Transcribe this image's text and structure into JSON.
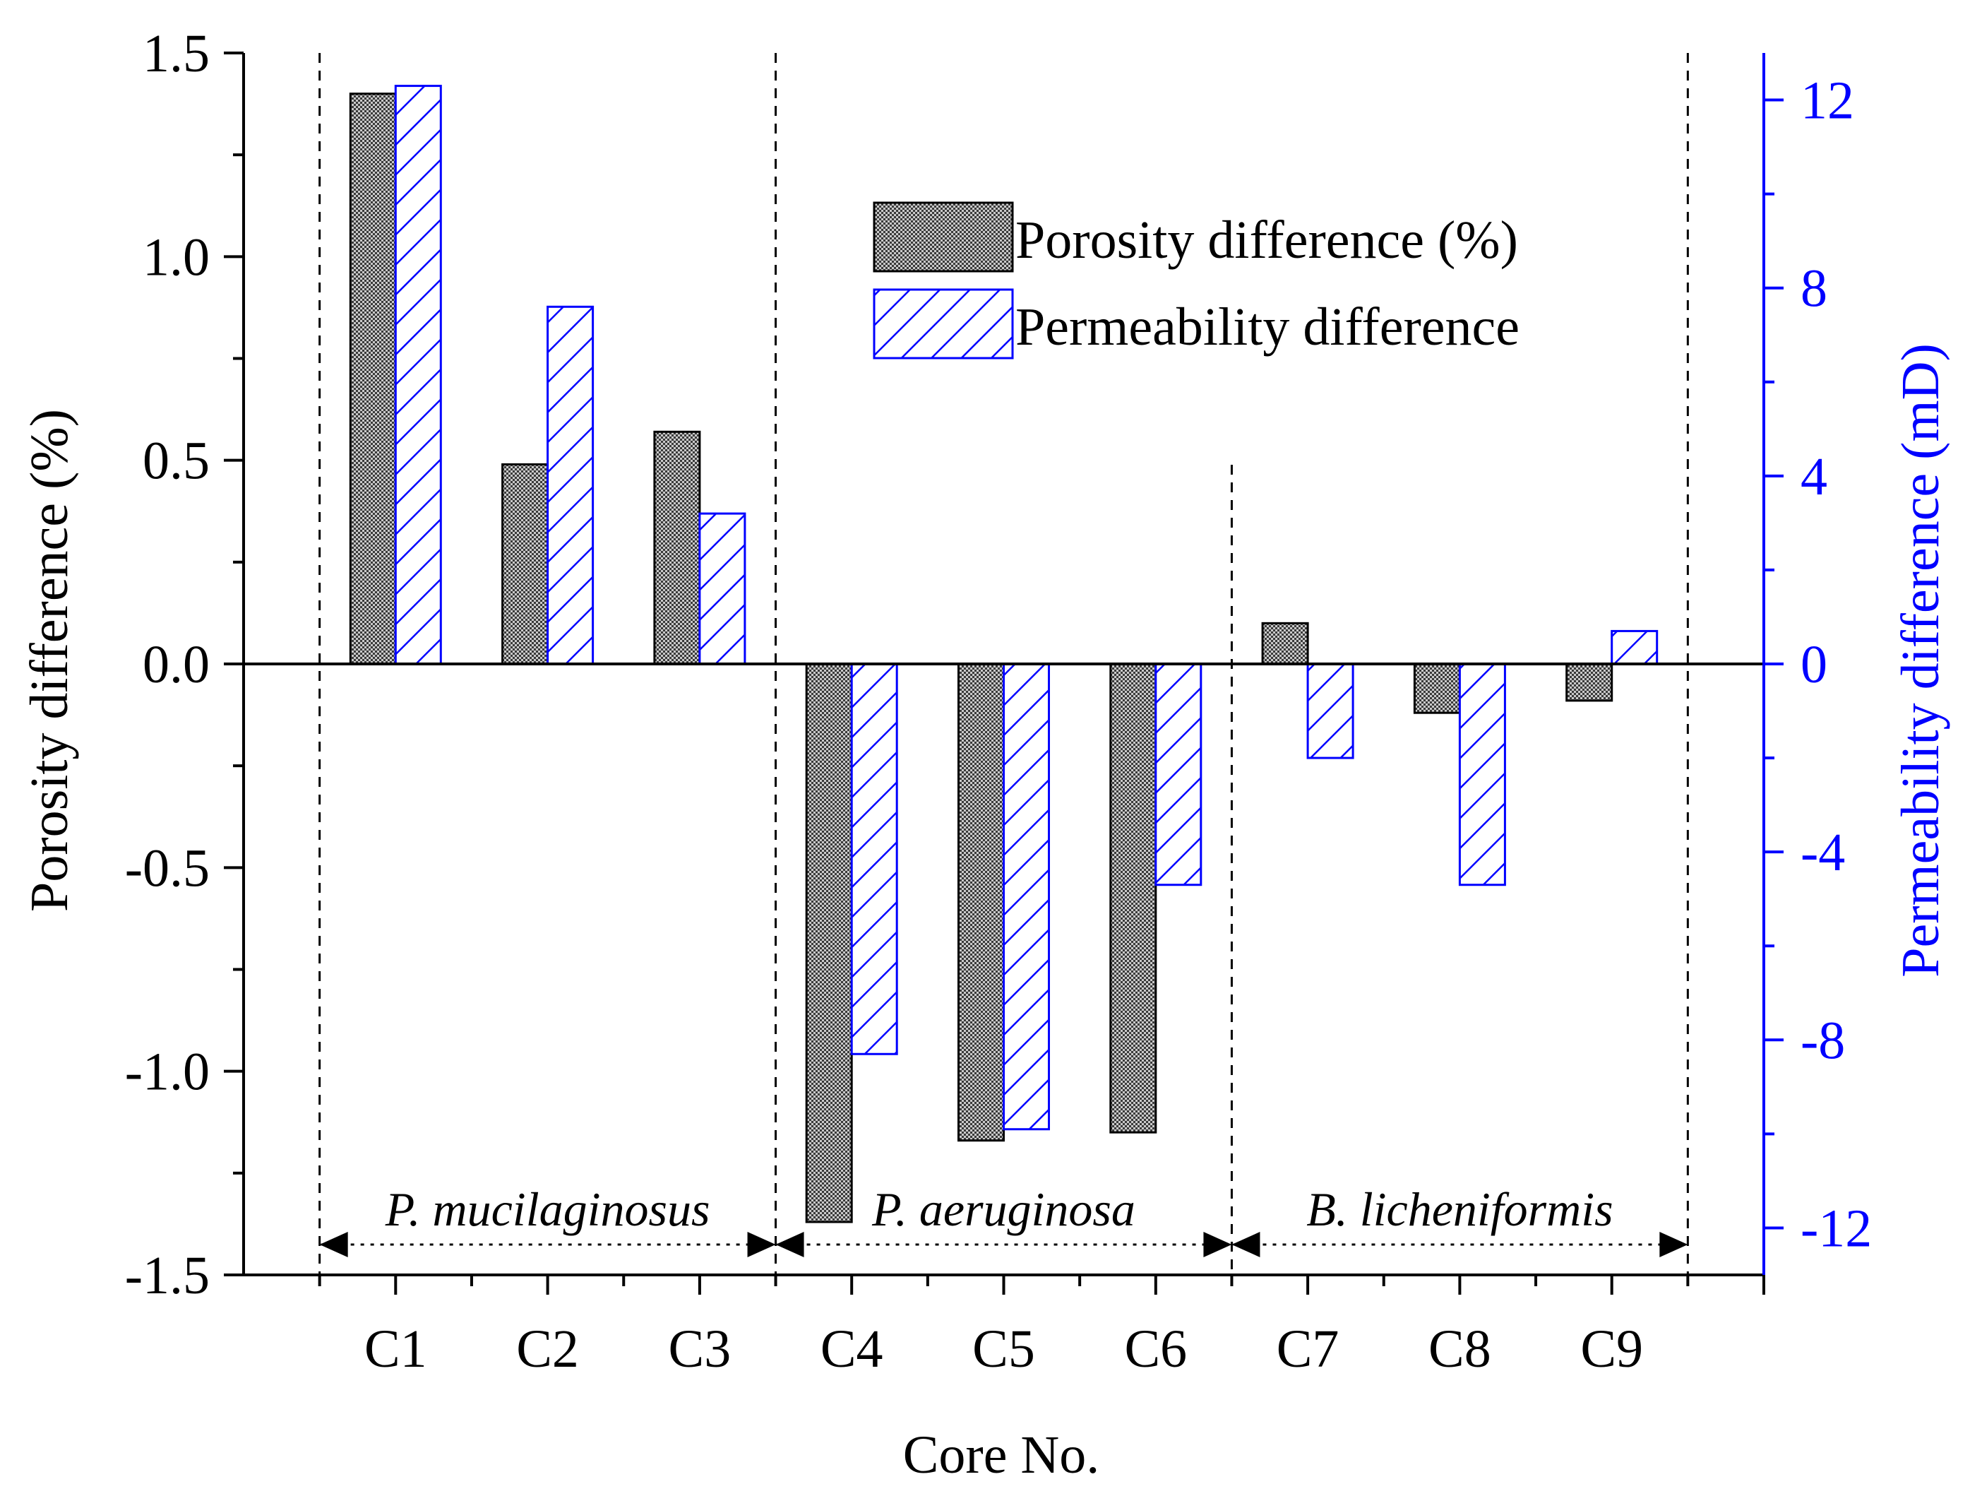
{
  "chart_data": {
    "type": "bar",
    "categories": [
      "C1",
      "C2",
      "C3",
      "C4",
      "C5",
      "C6",
      "C7",
      "C8",
      "C9"
    ],
    "xlabel": "Core No.",
    "ylabel": "Porosity difference (%)",
    "y2label": "Permeability difference (mD)",
    "ylim": [
      -1.5,
      1.5
    ],
    "y2lim": [
      -13,
      13
    ],
    "yticks": [
      "-1.5",
      "-1.0",
      "-0.5",
      "0.0",
      "0.5",
      "1.0",
      "1.5"
    ],
    "y2ticks": [
      "-12",
      "-8",
      "-4",
      "0",
      "4",
      "8",
      "12"
    ],
    "series": [
      {
        "name": "Porosity difference (%)",
        "axis": "left",
        "color": "#000000",
        "fill": "crosshatch-gray",
        "values": [
          1.4,
          0.49,
          0.57,
          -1.37,
          -1.17,
          -1.15,
          0.1,
          -0.12,
          -0.09
        ]
      },
      {
        "name": "Permeability difference",
        "axis": "right",
        "color": "#0000ff",
        "fill": "diagonal-hatch-blue",
        "values": [
          12.3,
          7.6,
          3.2,
          -8.3,
          -9.9,
          -4.7,
          -2.0,
          -4.7,
          0.7
        ]
      }
    ],
    "groups": [
      {
        "label": "P. mucilaginosus",
        "cores": [
          "C1",
          "C2",
          "C3"
        ]
      },
      {
        "label": "P. aeruginosa",
        "cores": [
          "C4",
          "C5",
          "C6"
        ]
      },
      {
        "label": "B. licheniformis",
        "cores": [
          "C7",
          "C8",
          "C9"
        ]
      }
    ],
    "legend_position": "top-right",
    "grid": false
  },
  "colors": {
    "left_axis": "#000000",
    "right_axis": "#0000ff",
    "porosity_bar": "#8a8a8a",
    "permeability_bar": "#0000ff"
  }
}
